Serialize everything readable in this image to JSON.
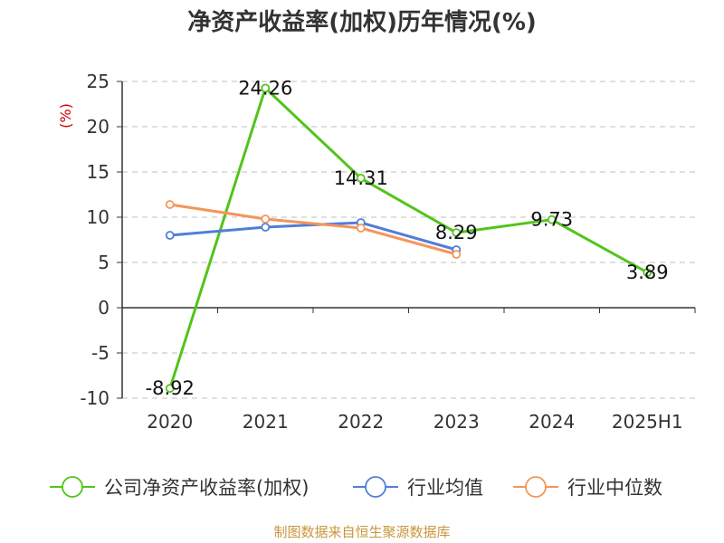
{
  "chart_data": {
    "type": "line",
    "title": "净资产收益率(加权)历年情况(%)",
    "ylabel": "(%)",
    "xlabel": "",
    "categories": [
      "2020",
      "2021",
      "2022",
      "2023",
      "2024",
      "2025H1"
    ],
    "ylim": [
      -10,
      25
    ],
    "yticks": [
      -10,
      -5,
      0,
      5,
      10,
      15,
      20,
      25
    ],
    "grid": true,
    "legend_position": "bottom",
    "series": [
      {
        "name": "公司净资产收益率(加权)",
        "color": "#52c41a",
        "values": [
          -8.92,
          24.26,
          14.31,
          8.29,
          9.73,
          3.89
        ],
        "labels": [
          "-8.92",
          "24.26",
          "14.31",
          "8.29",
          "9.73",
          "3.89"
        ]
      },
      {
        "name": "行业均值",
        "color": "#4f7fd8",
        "values": [
          8.0,
          8.9,
          9.4,
          6.4,
          null,
          null
        ]
      },
      {
        "name": "行业中位数",
        "color": "#f4955a",
        "values": [
          11.4,
          9.8,
          8.8,
          5.9,
          null,
          null
        ]
      }
    ]
  },
  "footer": {
    "source": "制图数据来自恒生聚源数据库"
  },
  "colors": {
    "title": "#333333",
    "ylabel": "#cc0000",
    "axis": "#333333",
    "grid": "#cccccc",
    "source": "#c8963c"
  }
}
